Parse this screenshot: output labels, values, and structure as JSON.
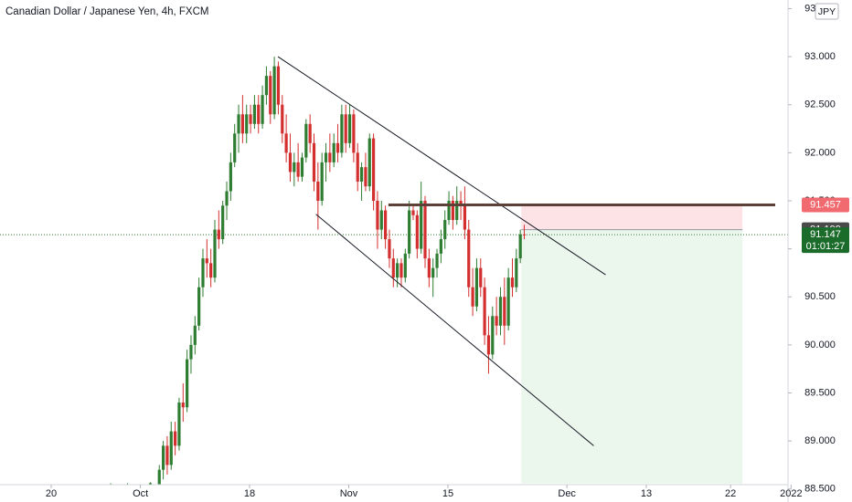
{
  "chart_data": {
    "type": "candlestick",
    "title": "Canadian Dollar / Japanese Yen, 4h, FXCM",
    "currency": "JPY",
    "up_color": "#2e7d32",
    "down_color": "#d32f2f",
    "xlim": [
      -5.16,
      74.29
    ],
    "ylim": [
      88.45,
      93.59
    ],
    "xticks": [
      {
        "value": 0,
        "label": "20"
      },
      {
        "value": 9,
        "label": "Oct"
      },
      {
        "value": 20,
        "label": "18"
      },
      {
        "value": 30,
        "label": "Nov"
      },
      {
        "value": 40,
        "label": "15"
      },
      {
        "value": 52,
        "label": "Dec"
      },
      {
        "value": 60,
        "label": "13"
      },
      {
        "value": 68.5,
        "label": "22"
      },
      {
        "value": 74.6,
        "label": "2022"
      }
    ],
    "yticks": [
      {
        "value": 88.5,
        "label": "88.500"
      },
      {
        "value": 89,
        "label": "89.000"
      },
      {
        "value": 89.5,
        "label": "89.500"
      },
      {
        "value": 90,
        "label": "90.000"
      },
      {
        "value": 90.5,
        "label": "90.500"
      },
      {
        "value": 91,
        "label": "91.000"
      },
      {
        "value": 91.5,
        "label": "91.500"
      },
      {
        "value": 92,
        "label": "92.000"
      },
      {
        "value": 92.5,
        "label": "92.500"
      },
      {
        "value": 93,
        "label": "93.000"
      },
      {
        "value": 93.5,
        "label": "93.500"
      }
    ],
    "candles": [
      [
        6.0,
        88.55,
        88.56,
        88.54,
        88.55
      ],
      [
        7.7,
        88.55,
        88.56,
        88.54,
        88.55
      ],
      [
        10.0,
        88.55,
        88.57,
        88.53,
        88.56
      ],
      [
        10.9,
        88.55,
        88.75,
        88.45,
        88.7
      ],
      [
        11.3,
        88.7,
        89.0,
        88.6,
        88.95
      ],
      [
        11.7,
        88.95,
        89.05,
        88.65,
        88.75
      ],
      [
        12.1,
        88.75,
        89.2,
        88.7,
        89.1
      ],
      [
        12.5,
        89.1,
        89.2,
        88.85,
        88.95
      ],
      [
        12.9,
        88.95,
        89.45,
        88.9,
        89.4
      ],
      [
        13.3,
        89.4,
        89.6,
        89.2,
        89.35
      ],
      [
        13.7,
        89.35,
        89.95,
        89.3,
        89.85
      ],
      [
        14.1,
        89.85,
        90.1,
        89.7,
        90.0
      ],
      [
        14.5,
        90.0,
        90.3,
        89.9,
        90.2
      ],
      [
        14.9,
        90.2,
        90.7,
        90.15,
        90.6
      ],
      [
        15.3,
        90.6,
        91.0,
        90.5,
        90.9
      ],
      [
        15.7,
        90.9,
        91.1,
        90.7,
        90.85
      ],
      [
        16.1,
        90.85,
        91.0,
        90.6,
        90.7
      ],
      [
        16.5,
        90.7,
        91.3,
        90.65,
        91.2
      ],
      [
        16.9,
        91.2,
        91.4,
        91.0,
        91.1
      ],
      [
        17.3,
        91.1,
        91.5,
        91.05,
        91.45
      ],
      [
        17.7,
        91.45,
        91.7,
        91.3,
        91.6
      ],
      [
        18.1,
        91.6,
        92.0,
        91.5,
        91.9
      ],
      [
        18.5,
        91.9,
        92.3,
        91.85,
        92.2
      ],
      [
        18.9,
        92.2,
        92.5,
        92.0,
        92.4
      ],
      [
        19.3,
        92.4,
        92.6,
        92.1,
        92.2
      ],
      [
        19.7,
        92.2,
        92.5,
        92.1,
        92.4
      ],
      [
        20.1,
        92.4,
        92.5,
        92.2,
        92.3
      ],
      [
        20.5,
        92.3,
        92.6,
        92.25,
        92.5
      ],
      [
        20.9,
        92.5,
        92.6,
        92.2,
        92.3
      ],
      [
        21.3,
        92.3,
        92.7,
        92.25,
        92.6
      ],
      [
        21.7,
        92.6,
        92.9,
        92.5,
        92.8
      ],
      [
        22.1,
        92.8,
        92.85,
        92.3,
        92.4
      ],
      [
        22.5,
        92.4,
        93.0,
        92.35,
        92.9
      ],
      [
        22.9,
        92.9,
        92.95,
        92.4,
        92.5
      ],
      [
        23.3,
        92.5,
        92.6,
        92.1,
        92.2
      ],
      [
        23.7,
        92.2,
        92.4,
        91.9,
        92.0
      ],
      [
        24.1,
        92.0,
        92.2,
        91.7,
        91.8
      ],
      [
        24.5,
        91.8,
        92.0,
        91.65,
        91.9
      ],
      [
        24.9,
        91.9,
        92.1,
        91.7,
        91.75
      ],
      [
        25.3,
        91.75,
        92.0,
        91.7,
        91.95
      ],
      [
        25.7,
        91.95,
        92.35,
        91.9,
        92.3
      ],
      [
        26.1,
        92.3,
        92.4,
        92.0,
        92.1
      ],
      [
        26.5,
        92.1,
        92.2,
        91.6,
        91.7
      ],
      [
        26.9,
        91.7,
        91.9,
        91.2,
        91.5
      ],
      [
        27.3,
        91.5,
        92.0,
        91.45,
        91.9
      ],
      [
        27.7,
        91.9,
        92.1,
        91.7,
        92.0
      ],
      [
        28.1,
        92.0,
        92.2,
        91.8,
        91.9
      ],
      [
        28.5,
        91.9,
        92.2,
        91.85,
        92.1
      ],
      [
        28.9,
        92.1,
        92.3,
        91.9,
        92.0
      ],
      [
        29.3,
        92.0,
        92.5,
        91.95,
        92.4
      ],
      [
        29.7,
        92.4,
        92.5,
        92.0,
        92.1
      ],
      [
        30.1,
        92.1,
        92.5,
        92.05,
        92.4
      ],
      [
        30.5,
        92.4,
        92.45,
        91.9,
        92.0
      ],
      [
        30.9,
        92.0,
        92.1,
        91.6,
        91.7
      ],
      [
        31.3,
        91.7,
        91.9,
        91.5,
        91.85
      ],
      [
        31.7,
        91.85,
        92.0,
        91.6,
        91.65
      ],
      [
        32.1,
        91.65,
        92.2,
        91.6,
        92.15
      ],
      [
        32.5,
        92.15,
        92.2,
        91.4,
        91.5
      ],
      [
        32.9,
        91.5,
        91.6,
        91.0,
        91.2
      ],
      [
        33.3,
        91.2,
        91.5,
        91.1,
        91.4
      ],
      [
        33.7,
        91.4,
        91.45,
        91.0,
        91.1
      ],
      [
        34.1,
        91.1,
        91.2,
        90.8,
        90.9
      ],
      [
        34.5,
        90.9,
        91.0,
        90.6,
        90.7
      ],
      [
        34.9,
        90.7,
        90.9,
        90.6,
        90.85
      ],
      [
        35.3,
        90.85,
        90.9,
        90.6,
        90.7
      ],
      [
        35.7,
        90.7,
        91.0,
        90.65,
        90.95
      ],
      [
        36.1,
        90.95,
        91.5,
        90.9,
        91.4
      ],
      [
        36.5,
        91.4,
        91.45,
        91.3,
        91.35
      ],
      [
        36.9,
        91.35,
        91.4,
        90.9,
        91.0
      ],
      [
        37.3,
        91.0,
        91.7,
        90.95,
        91.5
      ],
      [
        37.7,
        91.5,
        91.55,
        90.8,
        90.9
      ],
      [
        38.1,
        90.9,
        91.0,
        90.6,
        90.7
      ],
      [
        38.5,
        90.7,
        90.9,
        90.5,
        90.8
      ],
      [
        38.9,
        90.8,
        91.0,
        90.7,
        90.95
      ],
      [
        39.3,
        90.95,
        91.2,
        90.85,
        91.1
      ],
      [
        39.7,
        91.1,
        91.4,
        91.0,
        91.3
      ],
      [
        40.1,
        91.3,
        91.6,
        91.25,
        91.5
      ],
      [
        40.5,
        91.5,
        91.55,
        91.2,
        91.3
      ],
      [
        40.9,
        91.3,
        91.65,
        91.25,
        91.5
      ],
      [
        41.3,
        91.5,
        91.6,
        91.3,
        91.45
      ],
      [
        41.7,
        91.45,
        91.65,
        91.1,
        91.2
      ],
      [
        42.1,
        91.2,
        91.3,
        90.5,
        90.6
      ],
      [
        42.5,
        90.6,
        90.8,
        90.3,
        90.4
      ],
      [
        42.9,
        90.4,
        90.9,
        90.35,
        90.8
      ],
      [
        43.3,
        90.8,
        90.9,
        90.5,
        90.6
      ],
      [
        43.7,
        90.6,
        90.7,
        90.0,
        90.1
      ],
      [
        44.1,
        90.1,
        90.3,
        89.7,
        89.9
      ],
      [
        44.5,
        89.9,
        90.4,
        89.85,
        90.3
      ],
      [
        44.9,
        90.3,
        90.5,
        90.1,
        90.2
      ],
      [
        45.3,
        90.2,
        90.6,
        90.1,
        90.5
      ],
      [
        45.7,
        90.5,
        90.7,
        90.0,
        90.2
      ],
      [
        46.1,
        90.2,
        90.8,
        90.15,
        90.7
      ],
      [
        46.5,
        90.7,
        90.9,
        90.5,
        90.6
      ],
      [
        46.9,
        90.6,
        91.0,
        90.55,
        90.9
      ],
      [
        47.3,
        90.9,
        91.2,
        90.85,
        91.15
      ],
      [
        47.7,
        91.15,
        91.25,
        91.1,
        91.147
      ]
    ],
    "trend_lines": [
      {
        "x1": 22.86,
        "y1": 93.0,
        "x2": 55.9,
        "y2": 90.73
      },
      {
        "x1": 26.7,
        "y1": 91.36,
        "x2": 54.7,
        "y2": 88.95
      }
    ],
    "resistance": {
      "x1": 34.0,
      "x2": 73.0,
      "y": 91.457
    },
    "position": {
      "x1": 47.4,
      "x2": 69.7,
      "stop": 91.457,
      "entry": 91.199,
      "target": 88.557
    },
    "last_price": 91.147,
    "countdown": "01:01:27"
  }
}
